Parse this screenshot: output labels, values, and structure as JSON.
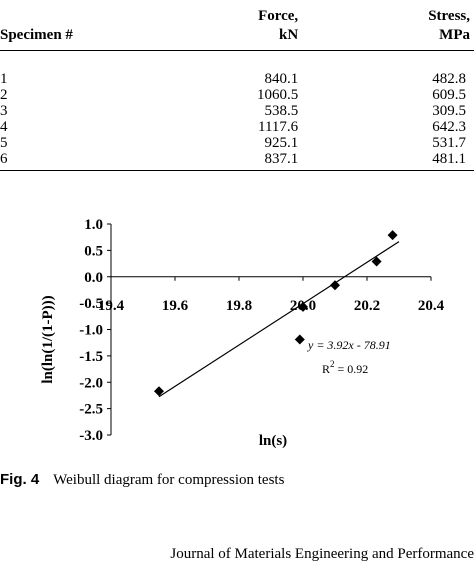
{
  "table": {
    "headers": [
      "Specimen #",
      "Force,\nkN",
      "Stress,\nMPa"
    ],
    "rows": [
      [
        "1",
        "840.1",
        "482.8"
      ],
      [
        "2",
        "1060.5",
        "609.5"
      ],
      [
        "3",
        "538.5",
        "309.5"
      ],
      [
        "4",
        "1117.6",
        "642.3"
      ],
      [
        "5",
        "925.1",
        "531.7"
      ],
      [
        "6",
        "837.1",
        "481.1"
      ]
    ]
  },
  "chart_data": {
    "type": "scatter",
    "xlabel": "ln(s)",
    "ylabel": "ln(ln(1/(1-P)))",
    "xlim": [
      19.4,
      20.4
    ],
    "ylim": [
      -3.0,
      1.0
    ],
    "xticks": [
      "19.4",
      "19.6",
      "19.8",
      "20.0",
      "20.2",
      "20.4"
    ],
    "yticks": [
      "1.0",
      "0.5",
      "0.0",
      "-0.5",
      "-1.0",
      "-1.5",
      "-2.0",
      "-2.5",
      "-3.0"
    ],
    "points": [
      {
        "x": 19.55,
        "y": -2.17
      },
      {
        "x": 19.99,
        "y": -1.19
      },
      {
        "x": 20.0,
        "y": -0.57
      },
      {
        "x": 20.1,
        "y": -0.16
      },
      {
        "x": 20.23,
        "y": 0.29
      },
      {
        "x": 20.28,
        "y": 0.79
      }
    ],
    "trendline": {
      "slope": 3.92,
      "intercept": -78.91,
      "x": [
        19.55,
        20.3
      ]
    },
    "equation": "y = 3.92x - 78.91",
    "r2_label": "R",
    "r2_value": "2",
    "r2_suffix": " = 0.92"
  },
  "caption": {
    "figno": "Fig. 4",
    "text": "Weibull diagram for compression tests"
  },
  "footer": {
    "journal": "Journal of Materials Engineering and Performance"
  }
}
